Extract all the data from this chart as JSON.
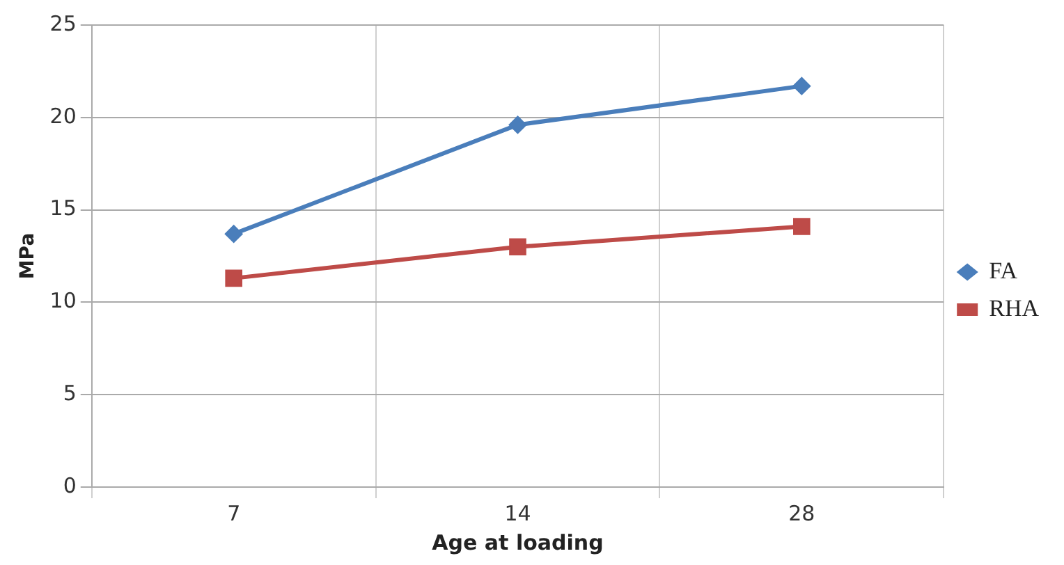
{
  "chart_data": {
    "type": "line",
    "xlabel": "Age at loading",
    "ylabel": "MPa",
    "categories": [
      "7",
      "14",
      "28"
    ],
    "series": [
      {
        "name": "FA",
        "color": "#4a7ebb",
        "marker": "diamond",
        "values": [
          13.7,
          19.6,
          21.7
        ]
      },
      {
        "name": "RHA",
        "color": "#be4b48",
        "marker": "square",
        "values": [
          11.3,
          13.0,
          14.1
        ]
      }
    ],
    "ylim": [
      0,
      25
    ],
    "yticks": [
      0,
      5,
      10,
      15,
      20,
      25
    ],
    "grid": true,
    "legend": "right",
    "line_style": "solid"
  }
}
